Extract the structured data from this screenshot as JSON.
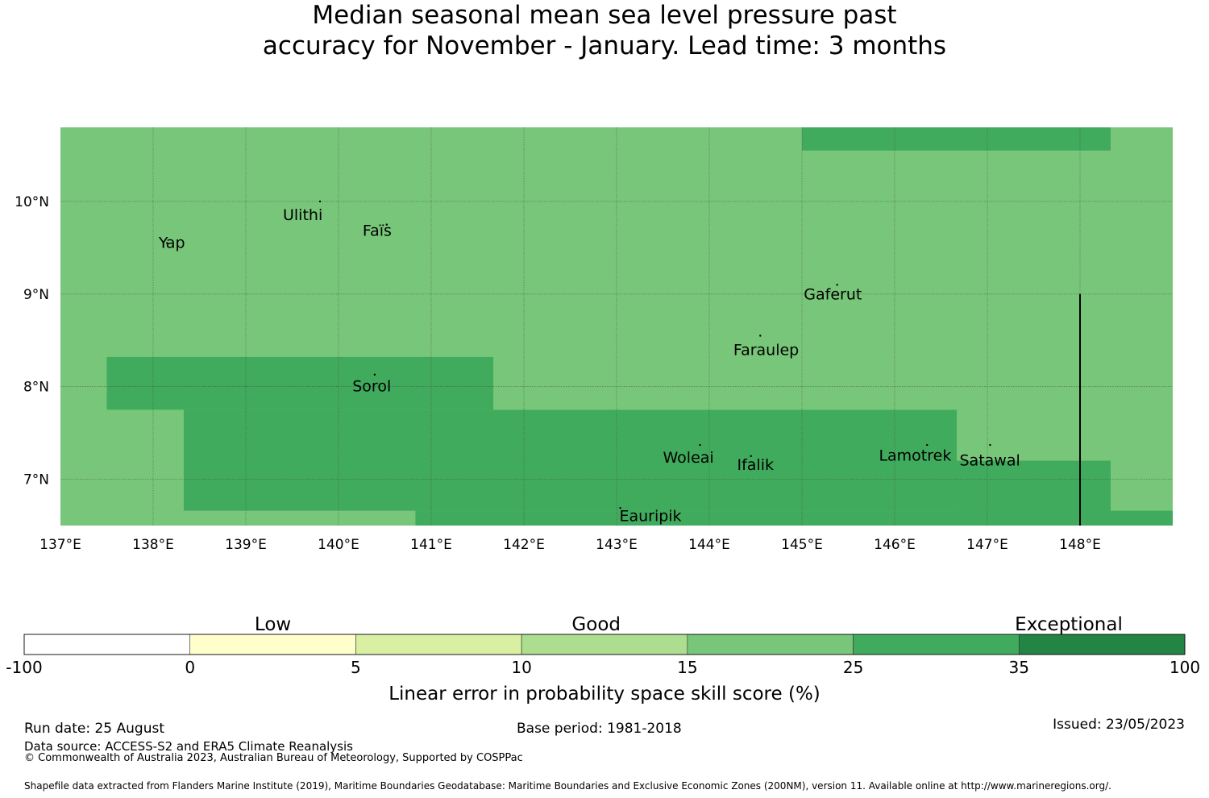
{
  "title": {
    "line1": "Median seasonal mean sea level pressure past",
    "line2": "accuracy for November - January. Lead time: 3 months"
  },
  "map": {
    "lon_range": [
      137,
      149
    ],
    "lat_range": [
      6.5,
      10.8
    ],
    "lon_ticks": [
      {
        "value": 137,
        "label": "137°E"
      },
      {
        "value": 138,
        "label": "138°E"
      },
      {
        "value": 139,
        "label": "139°E"
      },
      {
        "value": 140,
        "label": "140°E"
      },
      {
        "value": 141,
        "label": "141°E"
      },
      {
        "value": 142,
        "label": "142°E"
      },
      {
        "value": 143,
        "label": "143°E"
      },
      {
        "value": 144,
        "label": "144°E"
      },
      {
        "value": 145,
        "label": "145°E"
      },
      {
        "value": 146,
        "label": "146°E"
      },
      {
        "value": 147,
        "label": "147°E"
      },
      {
        "value": 148,
        "label": "148°E"
      }
    ],
    "lat_ticks": [
      {
        "value": 7,
        "label": "7°N"
      },
      {
        "value": 8,
        "label": "8°N"
      },
      {
        "value": 9,
        "label": "9°N"
      },
      {
        "value": 10,
        "label": "10°N"
      }
    ],
    "base_color": "#78c679",
    "grid_color": "#333333",
    "cells": [
      {
        "lon": [
          145,
          148.33
        ],
        "lat": [
          10.55,
          10.8
        ],
        "color": "#41ab5d"
      },
      {
        "lon": [
          137.5,
          141.67
        ],
        "lat": [
          7.75,
          8.32
        ],
        "color": "#41ab5d"
      },
      {
        "lon": [
          138.33,
          137.5
        ],
        "lat": [
          6.66,
          7.75
        ],
        "color": "#78c679"
      },
      {
        "lon": [
          138.33,
          146.67
        ],
        "lat": [
          6.66,
          7.75
        ],
        "color": "#41ab5d"
      },
      {
        "lon": [
          140.83,
          146.67
        ],
        "lat": [
          6.5,
          6.66
        ],
        "color": "#41ab5d"
      },
      {
        "lon": [
          146.67,
          148.33
        ],
        "lat": [
          6.5,
          7.2
        ],
        "color": "#41ab5d"
      },
      {
        "lon": [
          148.33,
          149
        ],
        "lat": [
          6.5,
          6.66
        ],
        "color": "#41ab5d"
      }
    ],
    "boundary_line": {
      "lon": 148,
      "lat": [
        6.5,
        9
      ]
    },
    "islands": [
      {
        "name": "Yap",
        "lon": 138.06,
        "lat": 9.5,
        "dot": [
          138.15,
          9.55
        ]
      },
      {
        "name": "Ulithi",
        "lon": 139.4,
        "lat": 9.8,
        "dot": [
          139.8,
          10.0
        ]
      },
      {
        "name": "Faïs",
        "lon": 140.26,
        "lat": 9.63,
        "dot": [
          140.52,
          9.75
        ]
      },
      {
        "name": "Gaferut",
        "lon": 145.02,
        "lat": 8.94,
        "dot": [
          145.38,
          9.1
        ]
      },
      {
        "name": "Faraulep",
        "lon": 144.26,
        "lat": 8.34,
        "dot": [
          144.55,
          8.55
        ]
      },
      {
        "name": "Sorol",
        "lon": 140.15,
        "lat": 7.95,
        "dot": [
          140.39,
          8.13
        ]
      },
      {
        "name": "Woleai",
        "lon": 143.5,
        "lat": 7.18,
        "dot": [
          143.9,
          7.37
        ]
      },
      {
        "name": "Ifalik",
        "lon": 144.3,
        "lat": 7.1,
        "dot": [
          144.45,
          7.25
        ]
      },
      {
        "name": "Lamotrek",
        "lon": 145.83,
        "lat": 7.2,
        "dot": [
          146.35,
          7.37
        ]
      },
      {
        "name": "Satawal",
        "lon": 146.7,
        "lat": 7.15,
        "dot": [
          147.03,
          7.37
        ]
      },
      {
        "name": "Eauripik",
        "lon": 143.03,
        "lat": 6.55,
        "dot": [
          143.04,
          6.69
        ]
      }
    ]
  },
  "legend": {
    "bins": [
      {
        "from": "-100",
        "color": "#ffffff"
      },
      {
        "from": "0",
        "color": "#ffffcc"
      },
      {
        "from": "5",
        "color": "#d9f0a3"
      },
      {
        "from": "10",
        "color": "#addd8e"
      },
      {
        "from": "15",
        "color": "#78c679"
      },
      {
        "from": "25",
        "color": "#41ab5d"
      },
      {
        "from": "35",
        "color": "#238443"
      }
    ],
    "end_label": "100",
    "categories": [
      {
        "label": "Low",
        "position": 1.5
      },
      {
        "label": "Good",
        "position": 3.45
      },
      {
        "label": "Exceptional",
        "position": 6.3
      }
    ],
    "title": "Linear error in probability space skill score (%)"
  },
  "footer": {
    "run_date": "Run date: 25 August",
    "data_source": "Data source: ACCESS-S2 and ERA5 Climate Reanalysis",
    "copyright": "© Commonwealth of Australia 2023, Australian Bureau of Meteorology, Supported by COSPPac",
    "base_period": "Base period: 1981-2018",
    "issued": "Issued: 23/05/2023",
    "shapefile": "Shapefile data extracted from Flanders Marine Institute (2019), Maritime Boundaries Geodatabase: Maritime Boundaries and Exclusive Economic Zones (200NM), version 11. Available online at http://www.marineregions.org/."
  }
}
